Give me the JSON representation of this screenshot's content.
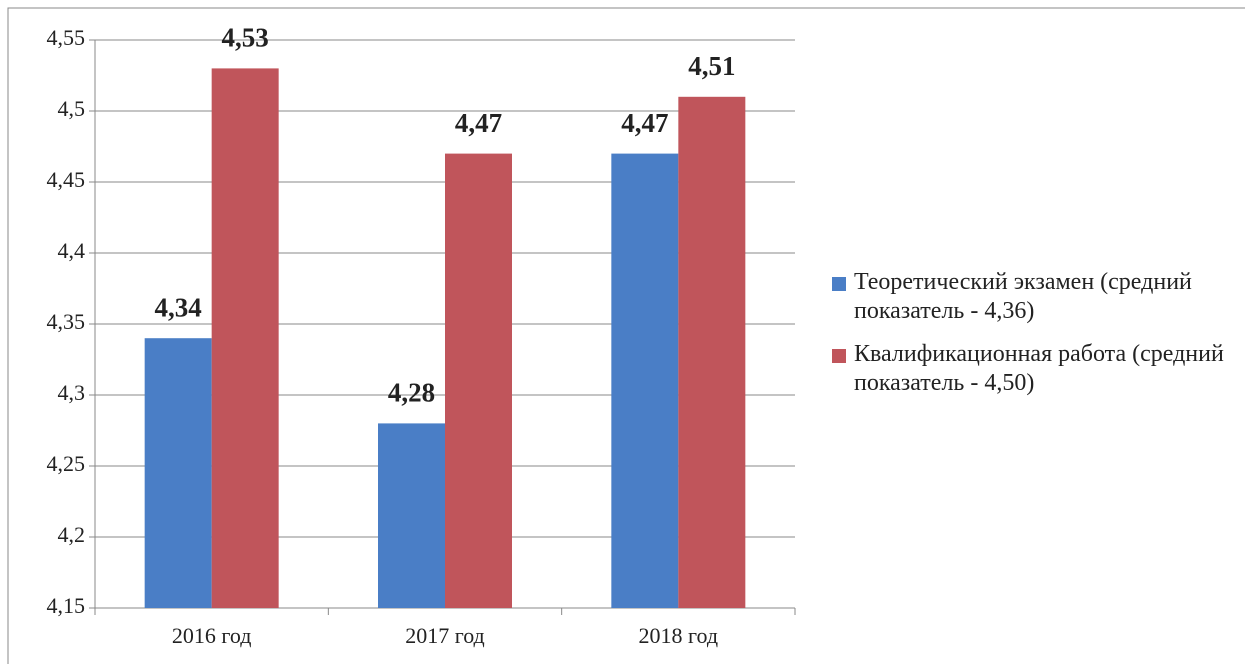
{
  "chart_data": {
    "type": "bar",
    "categories": [
      "2016 год",
      "2017 год",
      "2018 год"
    ],
    "series": [
      {
        "name": "Теоретический экзамен (средний показатель - 4,36)",
        "color": "#4a7ec6",
        "values": [
          4.34,
          4.28,
          4.47
        ],
        "value_labels": [
          "4,34",
          "4,28",
          "4,47"
        ]
      },
      {
        "name": "Квалификационная работа (средний показатель - 4,50)",
        "color": "#c0555b",
        "values": [
          4.53,
          4.47,
          4.51
        ],
        "value_labels": [
          "4,53",
          "4,47",
          "4,51"
        ]
      }
    ],
    "ylim": [
      4.15,
      4.55
    ],
    "yticks": [
      {
        "value": 4.15,
        "label": "4,15"
      },
      {
        "value": 4.2,
        "label": "4,2"
      },
      {
        "value": 4.25,
        "label": "4,25"
      },
      {
        "value": 4.3,
        "label": "4,3"
      },
      {
        "value": 4.35,
        "label": "4,35"
      },
      {
        "value": 4.4,
        "label": "4,4"
      },
      {
        "value": 4.45,
        "label": "4,45"
      },
      {
        "value": 4.5,
        "label": "4,5"
      },
      {
        "value": 4.55,
        "label": "4,55"
      }
    ],
    "grid": true,
    "legend": "right"
  }
}
